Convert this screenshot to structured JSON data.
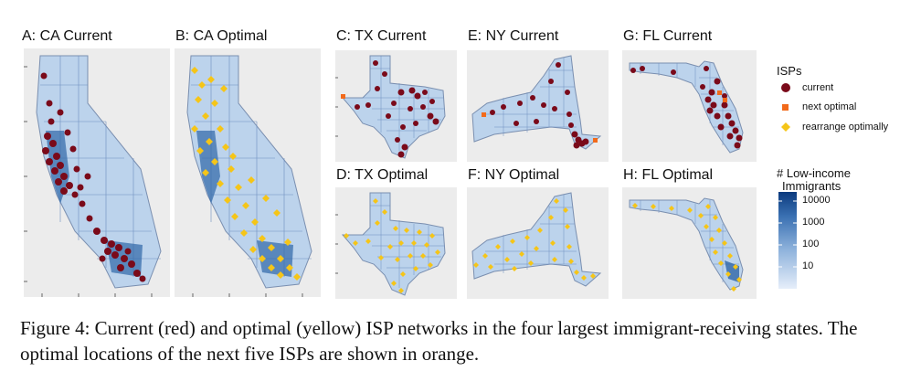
{
  "panels": [
    {
      "title": "A: CA Current",
      "state": "CA",
      "mode": "current"
    },
    {
      "title": "B: CA Optimal",
      "state": "CA",
      "mode": "optimal"
    },
    {
      "title": "C: TX Current",
      "state": "TX",
      "mode": "current"
    },
    {
      "title": "D: TX Optimal",
      "state": "TX",
      "mode": "optimal"
    },
    {
      "title": "E: NY Current",
      "state": "NY",
      "mode": "current"
    },
    {
      "title": "F: NY Optimal",
      "state": "NY",
      "mode": "optimal"
    },
    {
      "title": "G: FL Current",
      "state": "FL",
      "mode": "current"
    },
    {
      "title": "H: FL Optimal",
      "state": "FL",
      "mode": "optimal"
    }
  ],
  "legend_isps": {
    "title": "ISPs",
    "items": [
      {
        "label": "current",
        "color": "#7a0a1a",
        "shape": "circle"
      },
      {
        "label": "next optimal",
        "color": "#f26a1b",
        "shape": "square"
      },
      {
        "label": "rearrange optimally",
        "color": "#f5c518",
        "shape": "diamond"
      }
    ]
  },
  "legend_scale": {
    "title_line1": "# Low-income",
    "title_line2": "Immigrants",
    "ticks": [
      "10000",
      "1000",
      "100",
      "10"
    ],
    "color_low": "#e6eefa",
    "color_high": "#0b3a7e"
  },
  "caption": "Figure 4: Current (red) and optimal (yellow) ISP networks in the four largest immigrant-receiving states. The optimal locations of the next five ISPs are shown in orange."
}
